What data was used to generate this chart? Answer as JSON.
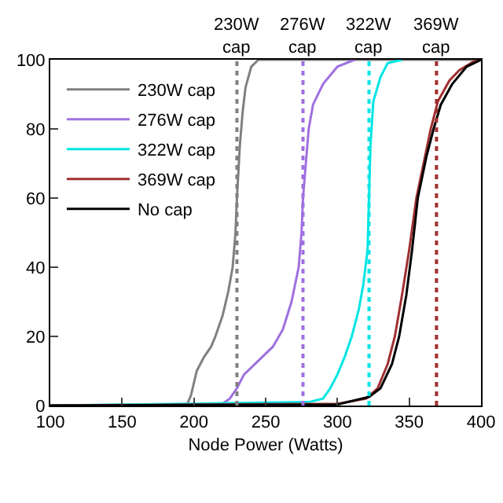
{
  "chart_data": {
    "type": "line",
    "xlabel": "Node Power (Watts)",
    "xlim": [
      100,
      400
    ],
    "xticks": [
      100,
      150,
      200,
      250,
      300,
      350,
      400
    ],
    "ylim": [
      0,
      100
    ],
    "yticks": [
      0,
      20,
      40,
      60,
      80,
      100
    ],
    "grid": false,
    "legend": "top left",
    "marker": "none",
    "line_style": "solid",
    "series": [
      {
        "name": "230W cap",
        "color": "#808080",
        "x": [
          100,
          195,
          198,
          202,
          207,
          212,
          215,
          220,
          224,
          227,
          229,
          230,
          232,
          234,
          236,
          240,
          245,
          400
        ],
        "values": [
          0,
          0,
          3,
          10,
          14,
          17,
          20,
          26,
          33,
          40,
          50,
          60,
          75,
          85,
          92,
          98,
          100,
          100
        ]
      },
      {
        "name": "276W cap",
        "color": "#a070e0",
        "x": [
          100,
          220,
          225,
          230,
          235,
          245,
          255,
          262,
          268,
          273,
          275,
          276,
          278,
          280,
          283,
          290,
          300,
          312
        ],
        "values": [
          0,
          0.5,
          2,
          5,
          9,
          13,
          17,
          22,
          30,
          40,
          50,
          60,
          70,
          80,
          87,
          93,
          98,
          100
        ]
      },
      {
        "name": "322W cap",
        "color": "#00e5e5",
        "x": [
          100,
          280,
          290,
          295,
          300,
          305,
          310,
          315,
          318,
          321,
          322,
          323,
          325,
          330,
          335,
          345
        ],
        "values": [
          0,
          1,
          2,
          5,
          9,
          14,
          20,
          28,
          35,
          45,
          60,
          75,
          88,
          95,
          99,
          100
        ]
      },
      {
        "name": "369W cap",
        "color": "#a03030",
        "x": [
          100,
          300,
          320,
          328,
          335,
          340,
          345,
          350,
          355,
          360,
          365,
          370,
          378,
          385,
          395,
          400
        ],
        "values": [
          0,
          0.5,
          2,
          5,
          12,
          20,
          32,
          45,
          60,
          70,
          80,
          88,
          94,
          97,
          99.5,
          100
        ]
      },
      {
        "name": "No cap",
        "color": "#000000",
        "x": [
          100,
          300,
          322,
          330,
          338,
          343,
          348,
          352,
          356,
          362,
          367,
          372,
          380,
          390,
          400
        ],
        "values": [
          0,
          0.3,
          2.5,
          5,
          12,
          20,
          32,
          45,
          60,
          72,
          80,
          87,
          93,
          98,
          100
        ]
      }
    ],
    "ref_lines": [
      {
        "axis": "x",
        "value": 230,
        "label": "230W\ncap",
        "color": "#808080",
        "line_style": "dotted"
      },
      {
        "axis": "x",
        "value": 276,
        "label": "276W\ncap",
        "color": "#a070e0",
        "line_style": "dotted"
      },
      {
        "axis": "x",
        "value": 322,
        "label": "322W\ncap",
        "color": "#00e5e5",
        "line_style": "dotted"
      },
      {
        "axis": "x",
        "value": 369,
        "label": "369W\ncap",
        "color": "#a03030",
        "line_style": "dotted"
      }
    ]
  }
}
